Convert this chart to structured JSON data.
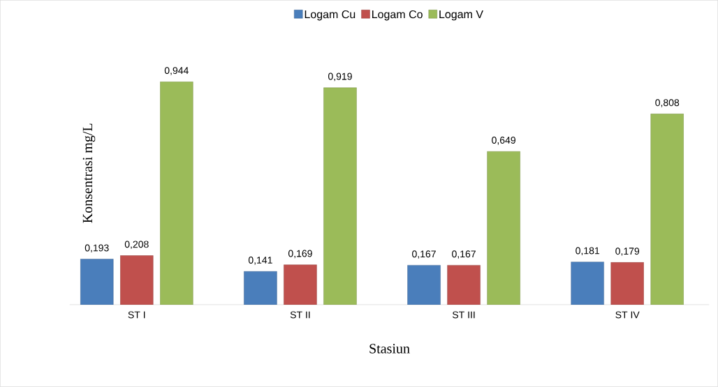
{
  "chart_data": {
    "type": "bar",
    "xlabel": "Stasiun",
    "ylabel": "Konsentrasi mg/L",
    "categories": [
      "ST I",
      "ST II",
      "ST III",
      "ST IV"
    ],
    "series": [
      {
        "name": "Logam Cu",
        "color": "#4a7ebb",
        "values": [
          0.193,
          0.141,
          0.167,
          0.181
        ],
        "value_labels": [
          "0,193",
          "0,141",
          "0,167",
          "0,181"
        ]
      },
      {
        "name": "Logam Co",
        "color": "#c0504d",
        "values": [
          0.208,
          0.169,
          0.167,
          0.179
        ],
        "value_labels": [
          "0,208",
          "0,169",
          "0,167",
          "0,179"
        ]
      },
      {
        "name": "Logam V",
        "color": "#9bbb59",
        "values": [
          0.944,
          0.919,
          0.649,
          0.808
        ],
        "value_labels": [
          "0,944",
          "0,919",
          "0,649",
          "0,808"
        ]
      }
    ],
    "legend": "top"
  }
}
